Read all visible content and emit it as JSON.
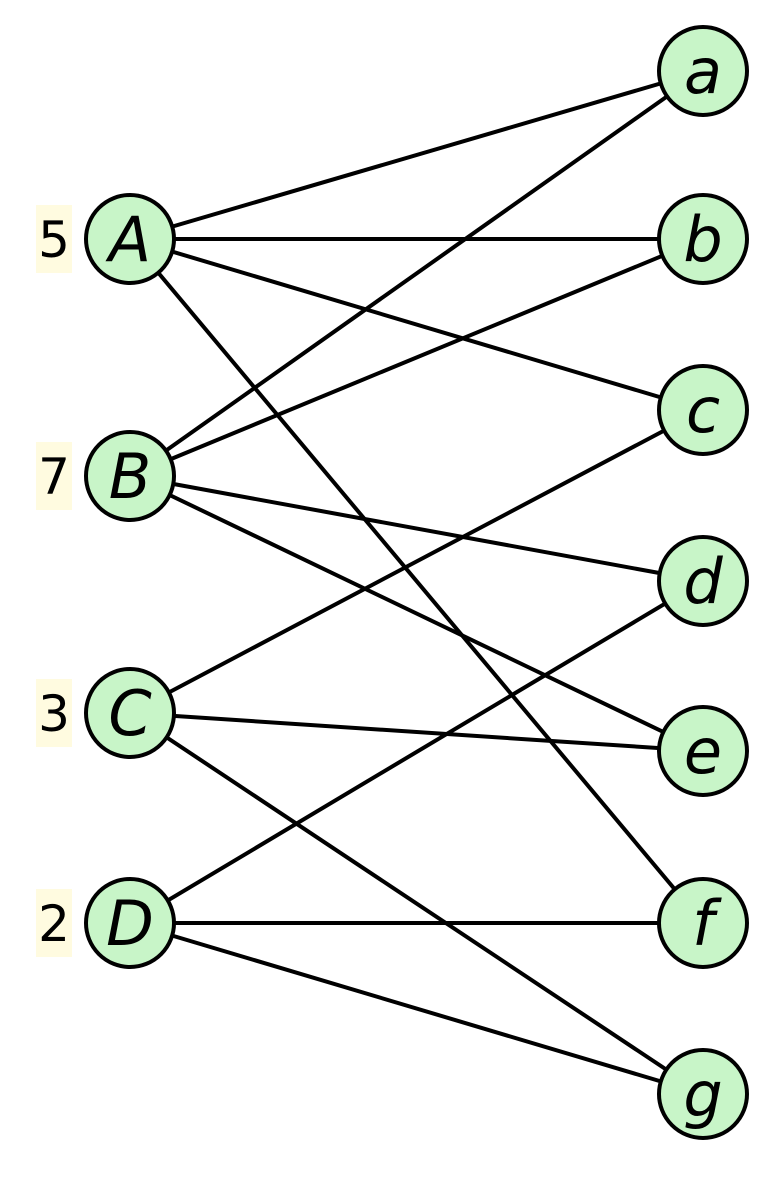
{
  "colors": {
    "node_fill": "#c8f5c8",
    "node_stroke": "#000000",
    "edge": "#000000",
    "weight_background": "#fffbe0"
  },
  "left_nodes": [
    {
      "id": "A",
      "label": "A",
      "weight": "5"
    },
    {
      "id": "B",
      "label": "B",
      "weight": "7"
    },
    {
      "id": "C",
      "label": "C",
      "weight": "3"
    },
    {
      "id": "D",
      "label": "D",
      "weight": "2"
    }
  ],
  "right_nodes": [
    {
      "id": "a",
      "label": "a"
    },
    {
      "id": "b",
      "label": "b"
    },
    {
      "id": "c",
      "label": "c"
    },
    {
      "id": "d",
      "label": "d"
    },
    {
      "id": "e",
      "label": "e"
    },
    {
      "id": "f",
      "label": "f"
    },
    {
      "id": "g",
      "label": "g"
    }
  ],
  "edges": [
    [
      "A",
      "a"
    ],
    [
      "A",
      "b"
    ],
    [
      "A",
      "c"
    ],
    [
      "A",
      "f"
    ],
    [
      "B",
      "a"
    ],
    [
      "B",
      "b"
    ],
    [
      "B",
      "d"
    ],
    [
      "B",
      "e"
    ],
    [
      "C",
      "c"
    ],
    [
      "C",
      "e"
    ],
    [
      "C",
      "g"
    ],
    [
      "D",
      "d"
    ],
    [
      "D",
      "f"
    ],
    [
      "D",
      "g"
    ]
  ]
}
